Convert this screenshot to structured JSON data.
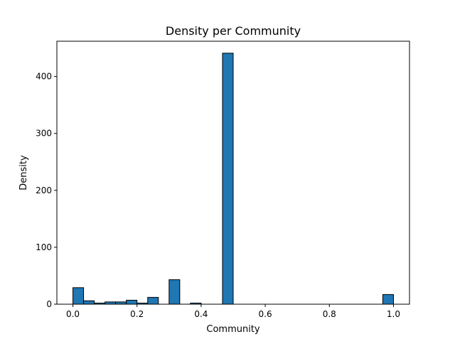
{
  "chart_data": {
    "type": "bar",
    "title": "Density per Community",
    "xlabel": "Community",
    "ylabel": "Density",
    "xlim": [
      -0.05,
      1.05
    ],
    "ylim": [
      0,
      462
    ],
    "x_ticks": [
      0.0,
      0.2,
      0.4,
      0.6,
      0.8,
      1.0
    ],
    "x_tick_labels": [
      "0.0",
      "0.2",
      "0.4",
      "0.6",
      "0.8",
      "1.0"
    ],
    "y_ticks": [
      0,
      100,
      200,
      300,
      400
    ],
    "y_tick_labels": [
      "0",
      "100",
      "200",
      "300",
      "400"
    ],
    "bin_width": 0.0333,
    "bins": [
      {
        "x0": 0.0,
        "value": 29
      },
      {
        "x0": 0.0333,
        "value": 6
      },
      {
        "x0": 0.0667,
        "value": 2
      },
      {
        "x0": 0.1,
        "value": 4
      },
      {
        "x0": 0.1333,
        "value": 4
      },
      {
        "x0": 0.1667,
        "value": 7
      },
      {
        "x0": 0.2,
        "value": 2
      },
      {
        "x0": 0.2333,
        "value": 12
      },
      {
        "x0": 0.2667,
        "value": 0
      },
      {
        "x0": 0.3,
        "value": 43
      },
      {
        "x0": 0.3333,
        "value": 0
      },
      {
        "x0": 0.3667,
        "value": 2
      },
      {
        "x0": 0.4,
        "value": 0
      },
      {
        "x0": 0.4333,
        "value": 0
      },
      {
        "x0": 0.4667,
        "value": 441
      },
      {
        "x0": 0.5,
        "value": 0
      },
      {
        "x0": 0.5333,
        "value": 0
      },
      {
        "x0": 0.5667,
        "value": 0
      },
      {
        "x0": 0.6,
        "value": 0
      },
      {
        "x0": 0.6333,
        "value": 0
      },
      {
        "x0": 0.6667,
        "value": 0
      },
      {
        "x0": 0.7,
        "value": 0
      },
      {
        "x0": 0.7333,
        "value": 0
      },
      {
        "x0": 0.7667,
        "value": 0
      },
      {
        "x0": 0.8,
        "value": 0
      },
      {
        "x0": 0.8333,
        "value": 0
      },
      {
        "x0": 0.8667,
        "value": 0
      },
      {
        "x0": 0.9,
        "value": 0
      },
      {
        "x0": 0.9333,
        "value": 0
      },
      {
        "x0": 0.9667,
        "value": 17
      }
    ],
    "bar_color": "#1f77b4",
    "edge_color": "#000000",
    "grid": false,
    "legend": "none"
  }
}
